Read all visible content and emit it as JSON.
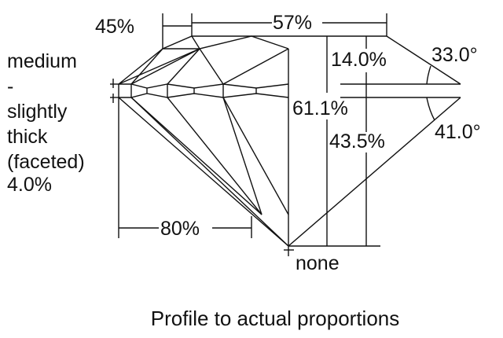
{
  "labels": {
    "crown_height_ratio": "45%",
    "table": "57%",
    "crown_height": "14.0%",
    "crown_angle": "33.0°",
    "total_depth": "61.1%",
    "pavilion_depth": "43.5%",
    "pavilion_angle": "41.0°",
    "lower_half": "80%",
    "culet": "none",
    "girdle": [
      "medium",
      "-",
      "slightly",
      "thick",
      "(faceted)",
      "4.0%"
    ]
  },
  "caption": "Profile to actual proportions",
  "colors": {
    "line": "#111111",
    "background": "#ffffff"
  }
}
